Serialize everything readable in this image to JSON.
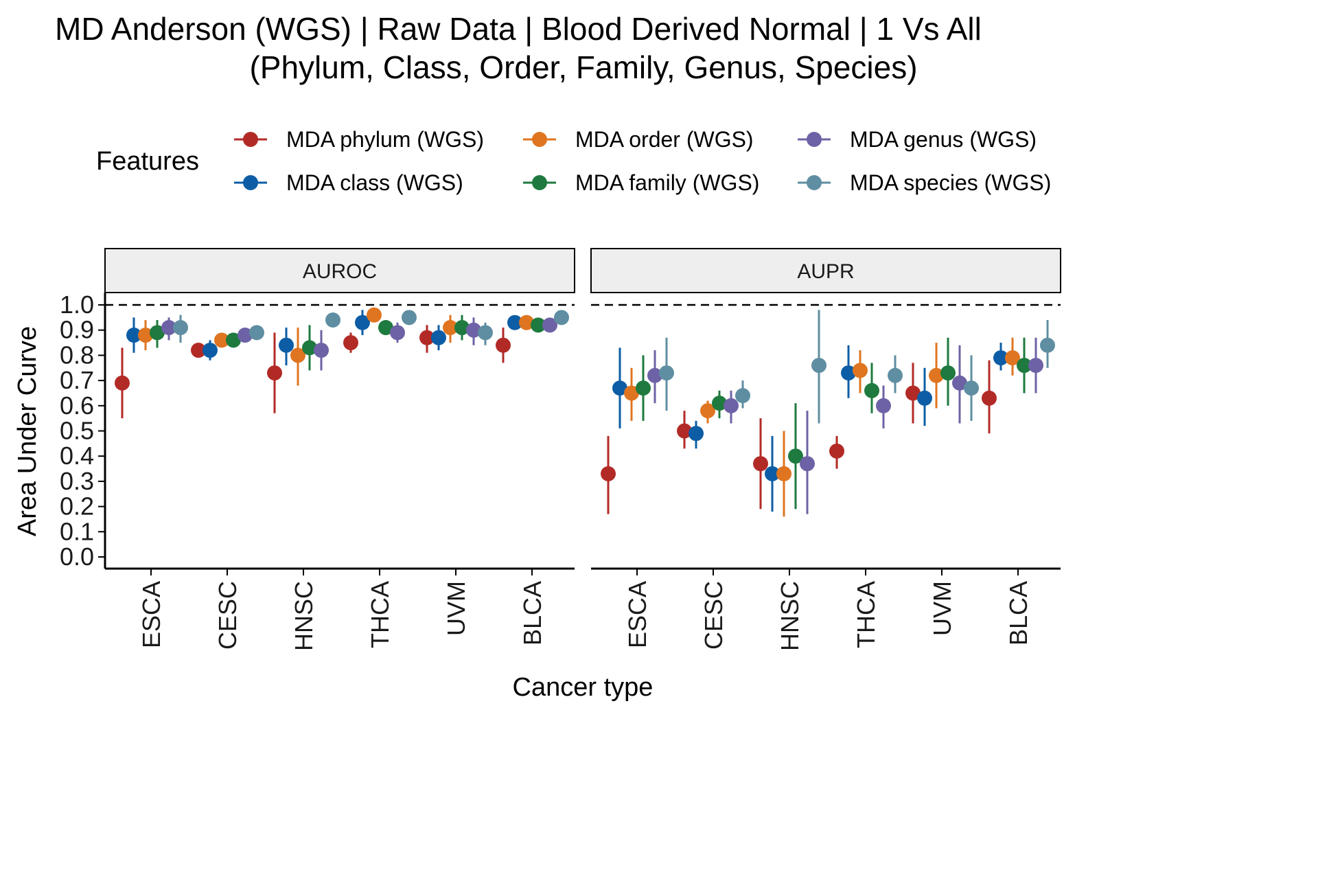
{
  "title_line1": "MD Anderson (WGS) | Raw Data | Blood Derived Normal | 1 Vs All",
  "title_line2": "(Phylum, Class, Order, Family, Genus, Species)",
  "legend": {
    "title": "Features",
    "items": [
      {
        "label": "MDA phylum (WGS)",
        "color": "#B22A26"
      },
      {
        "label": "MDA class (WGS)",
        "color": "#0C5DA5"
      },
      {
        "label": "MDA order (WGS)",
        "color": "#DF7520"
      },
      {
        "label": "MDA family (WGS)",
        "color": "#1E7A3E"
      },
      {
        "label": "MDA genus (WGS)",
        "color": "#6E62A6"
      },
      {
        "label": "MDA species (WGS)",
        "color": "#5F8EA2"
      }
    ]
  },
  "chart_data": {
    "type": "scatter",
    "subtype": "point-range, faceted",
    "xlabel": "Cancer type",
    "ylabel": "Area Under Curve",
    "ylim": [
      0,
      1
    ],
    "yticks": [
      "0.0",
      "0.1",
      "0.2",
      "0.3",
      "0.4",
      "0.5",
      "0.6",
      "0.7",
      "0.8",
      "0.9",
      "1.0"
    ],
    "reference_line": 1.0,
    "categories": [
      "ESCA",
      "CESC",
      "HNSC",
      "THCA",
      "UVM",
      "BLCA"
    ],
    "series_names": [
      "MDA phylum (WGS)",
      "MDA class (WGS)",
      "MDA order (WGS)",
      "MDA family (WGS)",
      "MDA genus (WGS)",
      "MDA species (WGS)"
    ],
    "panels": [
      {
        "label": "AUROC",
        "data": {
          "ESCA": [
            [
              0.69,
              0.55,
              0.83
            ],
            [
              0.88,
              0.81,
              0.95
            ],
            [
              0.88,
              0.82,
              0.94
            ],
            [
              0.89,
              0.83,
              0.94
            ],
            [
              0.91,
              0.86,
              0.95
            ],
            [
              0.91,
              0.85,
              0.96
            ]
          ],
          "CESC": [
            [
              0.82,
              0.8,
              0.83
            ],
            [
              0.82,
              0.78,
              0.86
            ],
            [
              0.86,
              0.84,
              0.87
            ],
            [
              0.86,
              0.84,
              0.88
            ],
            [
              0.88,
              0.86,
              0.89
            ],
            [
              0.89,
              0.87,
              0.9
            ]
          ],
          "HNSC": [
            [
              0.73,
              0.57,
              0.89
            ],
            [
              0.84,
              0.76,
              0.91
            ],
            [
              0.8,
              0.68,
              0.91
            ],
            [
              0.83,
              0.74,
              0.92
            ],
            [
              0.82,
              0.74,
              0.9
            ],
            [
              0.94,
              0.92,
              0.96
            ]
          ],
          "THCA": [
            [
              0.85,
              0.81,
              0.89
            ],
            [
              0.93,
              0.88,
              0.98
            ],
            [
              0.96,
              0.94,
              0.98
            ],
            [
              0.91,
              0.88,
              0.94
            ],
            [
              0.89,
              0.85,
              0.93
            ],
            [
              0.95,
              0.93,
              0.97
            ]
          ],
          "UVM": [
            [
              0.87,
              0.81,
              0.92
            ],
            [
              0.87,
              0.82,
              0.92
            ],
            [
              0.91,
              0.85,
              0.96
            ],
            [
              0.91,
              0.86,
              0.96
            ],
            [
              0.9,
              0.84,
              0.95
            ],
            [
              0.89,
              0.84,
              0.93
            ]
          ],
          "BLCA": [
            [
              0.84,
              0.77,
              0.91
            ],
            [
              0.93,
              0.91,
              0.95
            ],
            [
              0.93,
              0.91,
              0.95
            ],
            [
              0.92,
              0.9,
              0.94
            ],
            [
              0.92,
              0.9,
              0.94
            ],
            [
              0.95,
              0.94,
              0.96
            ]
          ]
        }
      },
      {
        "label": "AUPR",
        "data": {
          "ESCA": [
            [
              0.33,
              0.17,
              0.48
            ],
            [
              0.67,
              0.51,
              0.83
            ],
            [
              0.65,
              0.54,
              0.75
            ],
            [
              0.67,
              0.54,
              0.8
            ],
            [
              0.72,
              0.61,
              0.82
            ],
            [
              0.73,
              0.58,
              0.87
            ]
          ],
          "CESC": [
            [
              0.5,
              0.43,
              0.58
            ],
            [
              0.49,
              0.43,
              0.54
            ],
            [
              0.58,
              0.53,
              0.62
            ],
            [
              0.61,
              0.55,
              0.66
            ],
            [
              0.6,
              0.53,
              0.66
            ],
            [
              0.64,
              0.59,
              0.7
            ]
          ],
          "HNSC": [
            [
              0.37,
              0.19,
              0.55
            ],
            [
              0.33,
              0.18,
              0.48
            ],
            [
              0.33,
              0.16,
              0.5
            ],
            [
              0.4,
              0.19,
              0.61
            ],
            [
              0.37,
              0.17,
              0.58
            ],
            [
              0.76,
              0.53,
              0.98
            ]
          ],
          "THCA": [
            [
              0.42,
              0.35,
              0.48
            ],
            [
              0.73,
              0.63,
              0.84
            ],
            [
              0.74,
              0.65,
              0.82
            ],
            [
              0.66,
              0.57,
              0.77
            ],
            [
              0.6,
              0.51,
              0.68
            ],
            [
              0.72,
              0.65,
              0.8
            ]
          ],
          "UVM": [
            [
              0.65,
              0.53,
              0.77
            ],
            [
              0.63,
              0.52,
              0.75
            ],
            [
              0.72,
              0.59,
              0.85
            ],
            [
              0.73,
              0.6,
              0.87
            ],
            [
              0.69,
              0.53,
              0.84
            ],
            [
              0.67,
              0.54,
              0.8
            ]
          ],
          "BLCA": [
            [
              0.63,
              0.49,
              0.78
            ],
            [
              0.79,
              0.74,
              0.85
            ],
            [
              0.79,
              0.72,
              0.87
            ],
            [
              0.76,
              0.65,
              0.87
            ],
            [
              0.76,
              0.65,
              0.87
            ],
            [
              0.84,
              0.75,
              0.94
            ]
          ]
        }
      }
    ],
    "legend_position": "top",
    "grid": false
  }
}
